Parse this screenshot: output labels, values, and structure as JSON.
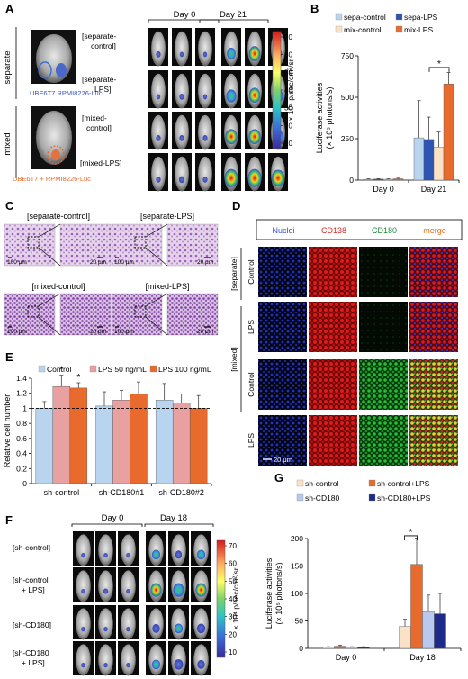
{
  "panels": {
    "A": {
      "letter": "A",
      "day0": "Day 0",
      "day21": "Day 21",
      "group_separate": "separate",
      "group_mixed": "mixed",
      "label_sep_cells": "UBE6T7  RPMI8226-Luc",
      "label_mix_cells": "UBE6T7 + RPMI8226-Luc",
      "rows": [
        "[separate-\ncontrol]",
        "[separate-\nLPS]",
        "[mixed-\ncontrol]",
        "[mixed-LPS]"
      ],
      "colorbar_ticks": [
        "70",
        "60",
        "50",
        "40",
        "30",
        "20",
        "10"
      ],
      "colorbar_label": "× 10⁴ p/sec/cm²/sr"
    },
    "B": {
      "letter": "B"
    },
    "C": {
      "letter": "C",
      "titles": [
        "[separate-control]",
        "[separate-LPS]",
        "[mixed-control]",
        "[mixed-LPS]"
      ],
      "scale_100": "100 μm",
      "scale_20": "20 μm"
    },
    "D": {
      "letter": "D",
      "columns": [
        "Nuclei",
        "CD138",
        "CD180",
        "merge"
      ],
      "column_colors": [
        "#3a52c8",
        "#d42a2a",
        "#1c8a3c",
        "#e0701c"
      ],
      "row_labels": [
        "Control",
        "LPS",
        "Control",
        "LPS"
      ],
      "groups": [
        "[separate]",
        "[mixed]"
      ],
      "scale": "20 μm"
    },
    "E": {
      "letter": "E"
    },
    "F": {
      "letter": "F",
      "day0": "Day 0",
      "day18": "Day 18",
      "rows": [
        "[sh-control]",
        "[sh-control\n+ LPS]",
        "[sh-CD180]",
        "[sh-CD180\n+ LPS]"
      ],
      "colorbar_ticks": [
        "70",
        "60",
        "50",
        "40",
        "30",
        "20",
        "10"
      ],
      "colorbar_label": "× 10⁴ p/sec/cm²/sr"
    },
    "G": {
      "letter": "G"
    }
  },
  "chart_data": [
    {
      "id": "B",
      "type": "bar",
      "categories": [
        "Day 0",
        "Day 21"
      ],
      "ylabel": "Luciferase activities\n(× 10⁵ photons/s)",
      "yticks": [
        0,
        250,
        500,
        750
      ],
      "ylim": [
        0,
        750
      ],
      "legend": "top",
      "significance": "*",
      "series": [
        {
          "name": "sepa-control",
          "color": "#b8d4ee",
          "values": [
            5,
            255
          ],
          "errors": [
            3,
            225
          ]
        },
        {
          "name": "sepa-LPS",
          "color": "#2f55b4",
          "values": [
            6,
            245
          ],
          "errors": [
            3,
            135
          ]
        },
        {
          "name": "mix-control",
          "color": "#fbe1c6",
          "values": [
            5,
            200
          ],
          "errors": [
            3,
            90
          ]
        },
        {
          "name": "mix-LPS",
          "color": "#e86a2c",
          "values": [
            8,
            580
          ],
          "errors": [
            4,
            70
          ]
        }
      ]
    },
    {
      "id": "E",
      "type": "bar",
      "categories": [
        "sh-control",
        "sh-CD180#1",
        "sh-CD180#2"
      ],
      "ylabel": "Relative cell number",
      "yticks": [
        0,
        0.2,
        0.4,
        0.6,
        0.8,
        1,
        1.2,
        1.4
      ],
      "ylim": [
        0,
        1.4
      ],
      "legend": "top",
      "reference_line": 1,
      "significance": [
        "*",
        "*"
      ],
      "series": [
        {
          "name": "Control",
          "color": "#b8d4ee",
          "values": [
            1.0,
            1.03,
            1.11
          ],
          "errors": [
            0.09,
            0.19,
            0.22
          ]
        },
        {
          "name": "LPS 50 ng/mL",
          "color": "#e8a0a0",
          "values": [
            1.29,
            1.11,
            1.07
          ],
          "errors": [
            0.15,
            0.13,
            0.12
          ]
        },
        {
          "name": "LPS 100 ng/mL",
          "color": "#e86a2c",
          "values": [
            1.27,
            1.19,
            1.0
          ],
          "errors": [
            0.07,
            0.16,
            0.17
          ]
        }
      ]
    },
    {
      "id": "G",
      "type": "bar",
      "categories": [
        "Day 0",
        "Day 18"
      ],
      "ylabel": "Luciferase activities\n(× 10⁵ photons/s)",
      "yticks": [
        0,
        50,
        100,
        150,
        200
      ],
      "ylim": [
        0,
        200
      ],
      "legend": "top",
      "significance": "*",
      "series": [
        {
          "name": "sh-control",
          "color": "#fbe1c6",
          "values": [
            2,
            40
          ],
          "errors": [
            1,
            13
          ]
        },
        {
          "name": "sh-control+LPS",
          "color": "#e86a2c",
          "values": [
            4,
            153
          ],
          "errors": [
            2,
            48
          ]
        },
        {
          "name": "sh-CD180",
          "color": "#b8c8ee",
          "values": [
            2,
            67
          ],
          "errors": [
            1,
            30
          ]
        },
        {
          "name": "sh-CD180+LPS",
          "color": "#1e2a8a",
          "values": [
            2,
            63
          ],
          "errors": [
            1,
            37
          ]
        }
      ]
    }
  ]
}
